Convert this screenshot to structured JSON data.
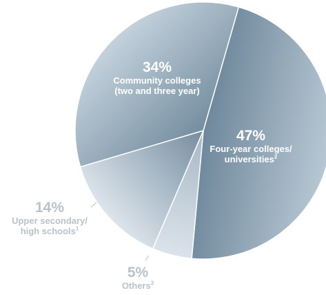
{
  "chart_data": {
    "type": "pie",
    "slices": [
      {
        "label": "Four-year colleges/ universities",
        "footnote": "2",
        "value": 47,
        "pct_label": "47%",
        "color_dark": "#6a8498",
        "color_light": "#b8c8d4"
      },
      {
        "label": "Others",
        "footnote": "3",
        "value": 5,
        "pct_label": "5%",
        "color_dark": "#a3b5c3",
        "color_light": "#dbe3ea"
      },
      {
        "label": "Upper secondary/ high schools",
        "footnote": "1",
        "value": 14,
        "pct_label": "14%",
        "color_dark": "#6f889b",
        "color_light": "#dde5ec"
      },
      {
        "label": "Community colleges (two and three year)",
        "footnote": "",
        "value": 34,
        "pct_label": "34%",
        "color_dark": "#708a9d",
        "color_light": "#c4d2dc"
      }
    ],
    "start_angle_deg": 16,
    "legend": "none"
  },
  "labels": {
    "four_year": {
      "pct": "47%",
      "line1": "Four-year colleges/",
      "line2": "universities",
      "sup": "2"
    },
    "others": {
      "pct": "5%",
      "line1": "Others",
      "sup": "3"
    },
    "upper": {
      "pct": "14%",
      "line1": "Upper secondary/",
      "line2": "high schools",
      "sup": "1"
    },
    "community": {
      "pct": "34%",
      "line1": "Community colleges",
      "line2": "(two and three year)"
    }
  }
}
